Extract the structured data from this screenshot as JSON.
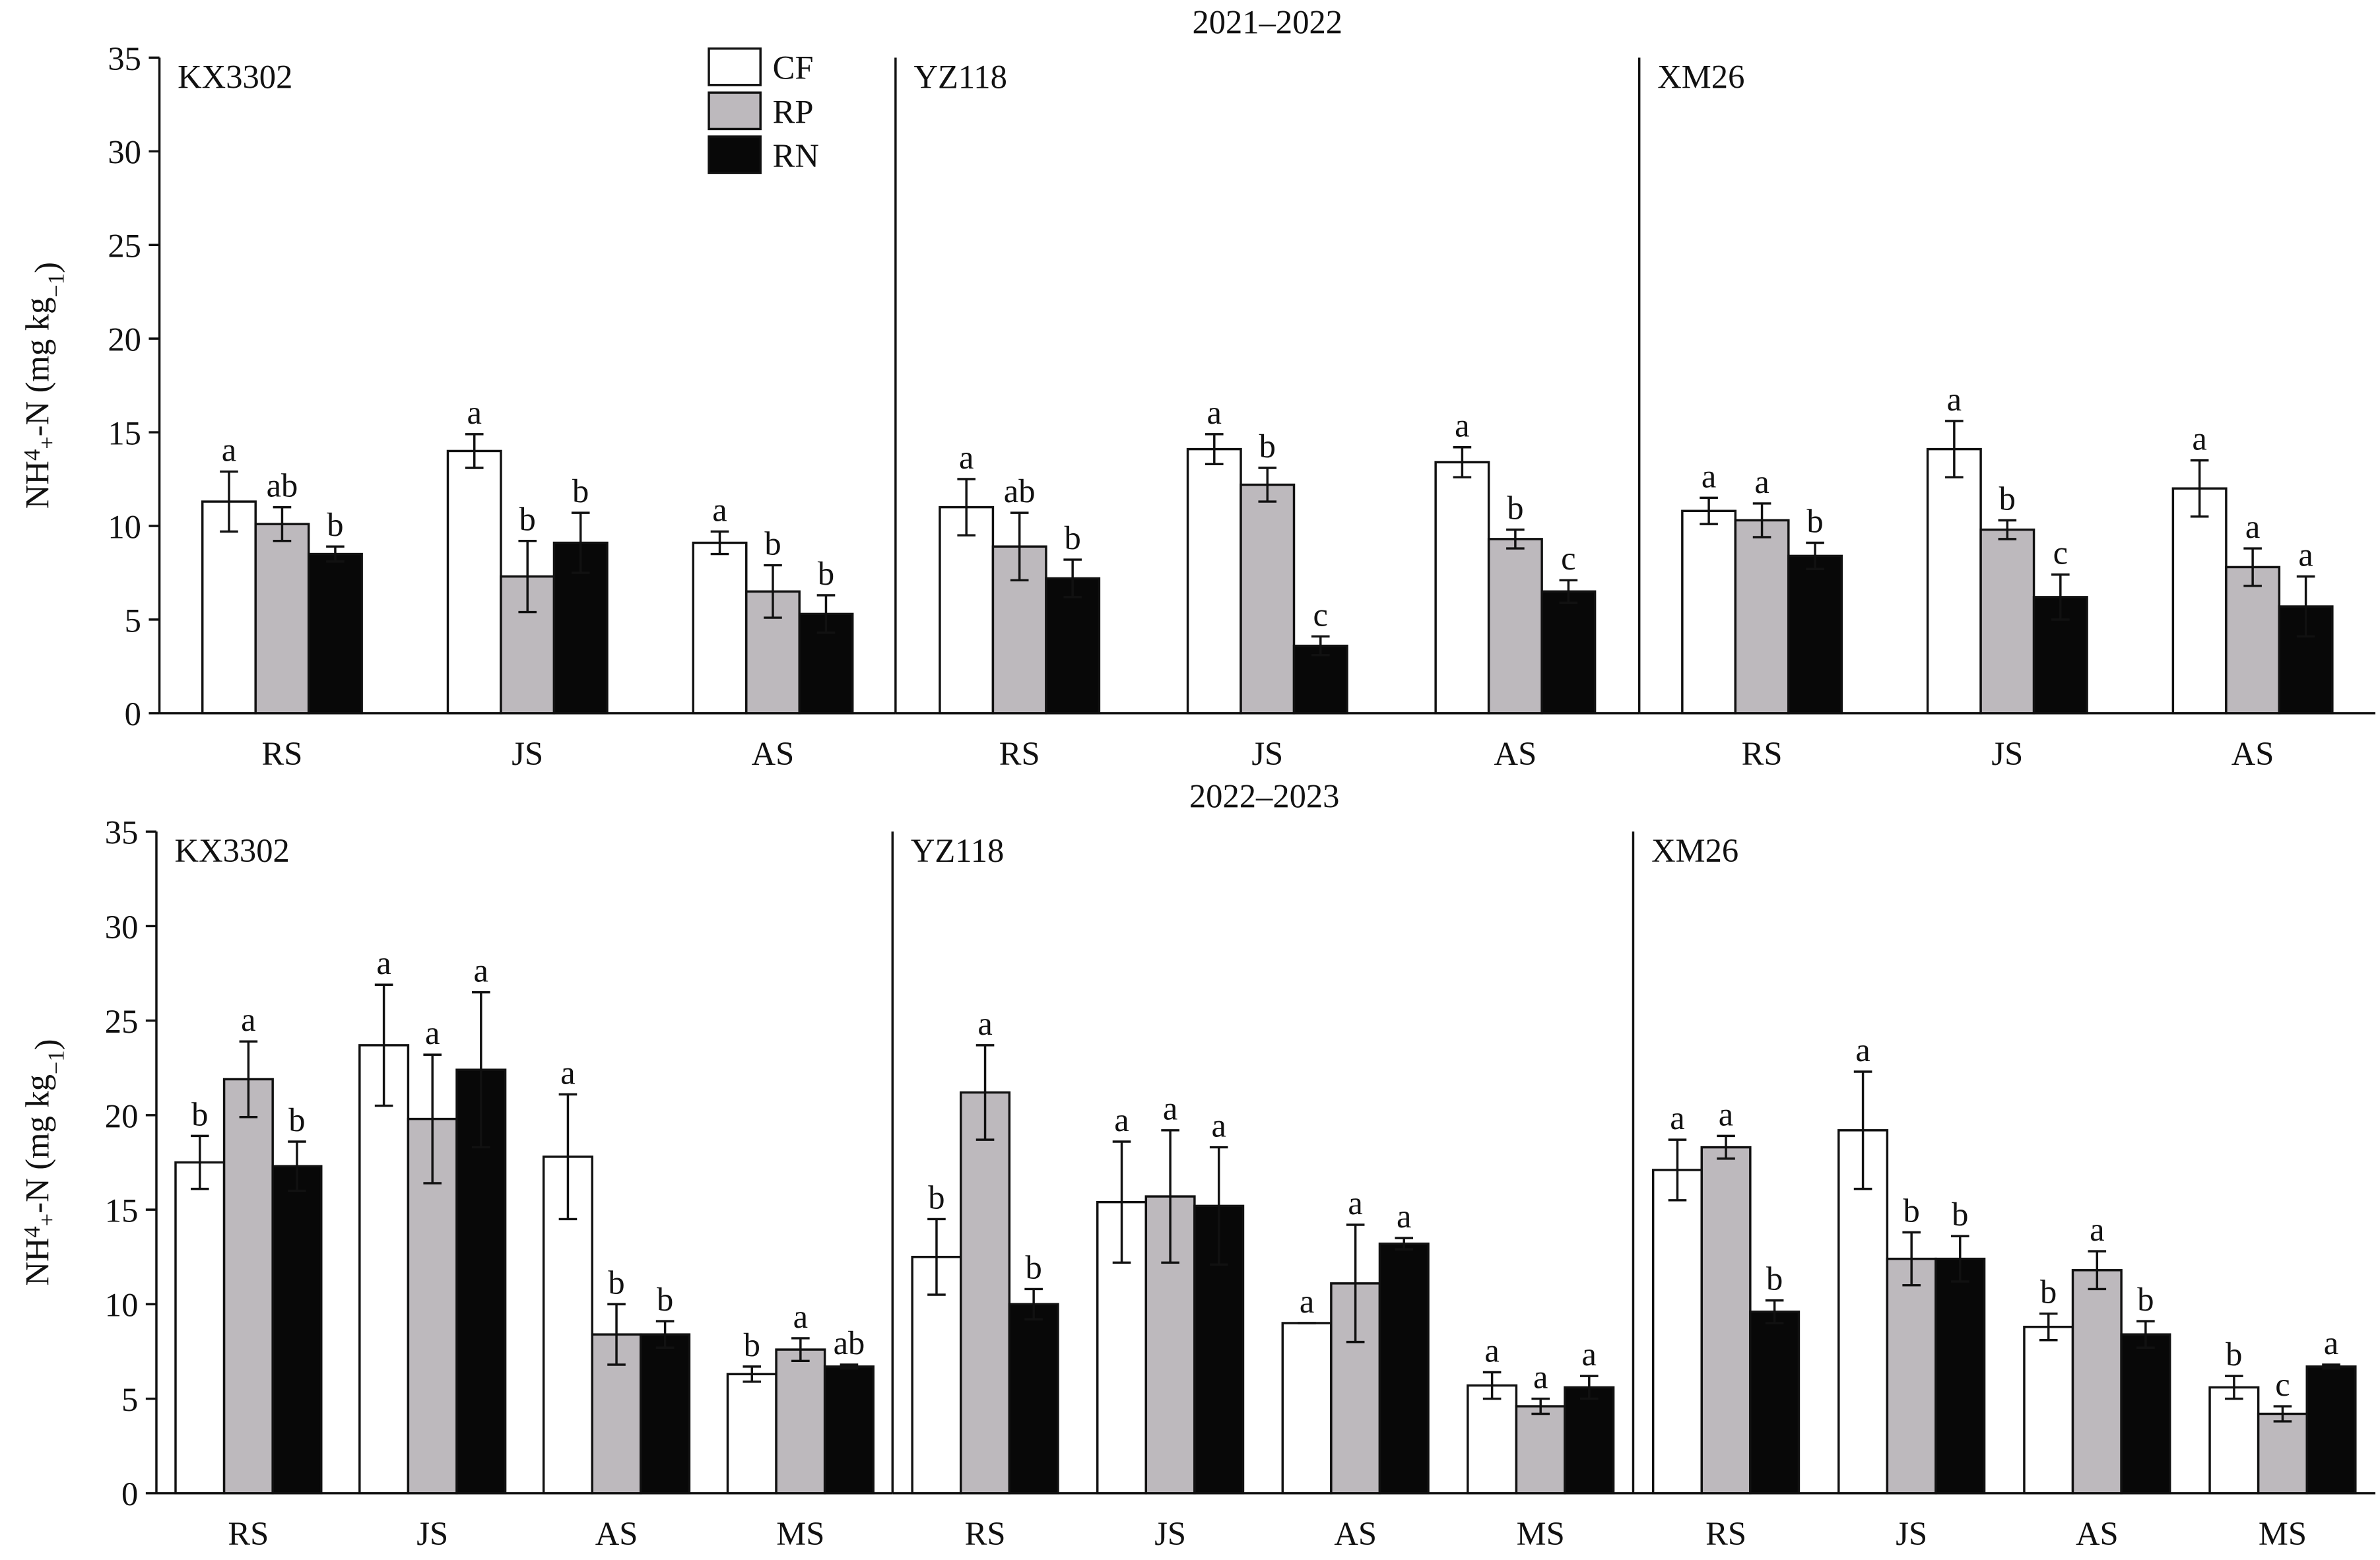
{
  "chart_data": [
    {
      "type": "bar",
      "panel_label": "KX3302",
      "ylabel": [
        "NH",
        "4",
        "+",
        "-N (mg kg",
        "−1",
        ")"
      ],
      "categories": [
        "RS",
        "JS",
        "AS"
      ],
      "ylim": [
        0,
        35
      ],
      "yticks": [
        0,
        5,
        10,
        15,
        20,
        25,
        30,
        35
      ],
      "legend": "top",
      "series": [
        {
          "name": "CF",
          "color": "#ffffff",
          "values": [
            11.3,
            14.0,
            9.1
          ],
          "errors": [
            1.6,
            0.9,
            0.6
          ],
          "labels": [
            "a",
            "a",
            "a"
          ]
        },
        {
          "name": "RP",
          "color": "#bdb9bd",
          "values": [
            10.1,
            7.3,
            6.5
          ],
          "errors": [
            0.9,
            1.9,
            1.4
          ],
          "labels": [
            "ab",
            "b",
            "b"
          ]
        },
        {
          "name": "RN",
          "color": "#080808",
          "values": [
            8.5,
            9.1,
            5.3
          ],
          "errors": [
            0.4,
            1.6,
            1.0
          ],
          "labels": [
            "b",
            "b",
            "b"
          ]
        }
      ]
    },
    {
      "type": "bar",
      "panel_label": "YZ118",
      "title": "2021–2022",
      "categories": [
        "RS",
        "JS",
        "AS"
      ],
      "ylim": [
        0,
        35
      ],
      "series": [
        {
          "color": "#ffffff",
          "values": [
            11.0,
            14.1,
            13.4
          ],
          "errors": [
            1.5,
            0.8,
            0.8
          ],
          "labels": [
            "a",
            "a",
            "a"
          ]
        },
        {
          "color": "#bdb9bd",
          "values": [
            8.9,
            12.2,
            9.3
          ],
          "errors": [
            1.8,
            0.9,
            0.5
          ],
          "labels": [
            "ab",
            "b",
            "b"
          ]
        },
        {
          "color": "#080808",
          "values": [
            7.2,
            3.6,
            6.5
          ],
          "errors": [
            1.0,
            0.5,
            0.6
          ],
          "labels": [
            "b",
            "c",
            "c"
          ]
        }
      ]
    },
    {
      "type": "bar",
      "panel_label": "XM26",
      "categories": [
        "RS",
        "JS",
        "AS"
      ],
      "ylim": [
        0,
        35
      ],
      "series": [
        {
          "color": "#ffffff",
          "values": [
            10.8,
            14.1,
            12.0
          ],
          "errors": [
            0.7,
            1.5,
            1.5
          ],
          "labels": [
            "a",
            "a",
            "a"
          ]
        },
        {
          "color": "#bdb9bd",
          "values": [
            10.3,
            9.8,
            7.8
          ],
          "errors": [
            0.9,
            0.5,
            1.0
          ],
          "labels": [
            "a",
            "b",
            "a"
          ]
        },
        {
          "color": "#080808",
          "values": [
            8.4,
            6.2,
            5.7
          ],
          "errors": [
            0.7,
            1.2,
            1.6
          ],
          "labels": [
            "b",
            "c",
            "a"
          ]
        }
      ]
    },
    {
      "type": "bar",
      "panel_label": "KX3302",
      "ylabel": [
        "NH",
        "4",
        "+",
        "-N  (mg kg",
        "−1",
        ")"
      ],
      "categories": [
        "RS",
        "JS",
        "AS",
        "MS"
      ],
      "ylim": [
        0,
        35
      ],
      "yticks": [
        0,
        5,
        10,
        15,
        20,
        25,
        30,
        35
      ],
      "series": [
        {
          "color": "#ffffff",
          "values": [
            17.5,
            23.7,
            17.8,
            6.3
          ],
          "errors": [
            1.4,
            3.2,
            3.3,
            0.4
          ],
          "labels": [
            "b",
            "a",
            "a",
            "b"
          ]
        },
        {
          "color": "#bdb9bd",
          "values": [
            21.9,
            19.8,
            8.4,
            7.6
          ],
          "errors": [
            2.0,
            3.4,
            1.6,
            0.6
          ],
          "labels": [
            "a",
            "a",
            "b",
            "a"
          ]
        },
        {
          "color": "#080808",
          "values": [
            17.3,
            22.4,
            8.4,
            6.7
          ],
          "errors": [
            1.3,
            4.1,
            0.7,
            0.1
          ],
          "labels": [
            "b",
            "a",
            "b",
            "ab"
          ]
        }
      ]
    },
    {
      "type": "bar",
      "panel_label": "YZ118",
      "title": "2022–2023",
      "categories": [
        "RS",
        "JS",
        "AS",
        "MS"
      ],
      "ylim": [
        0,
        35
      ],
      "series": [
        {
          "color": "#ffffff",
          "values": [
            12.5,
            15.4,
            9.0,
            5.7
          ],
          "errors": [
            2.0,
            3.2,
            0,
            0.7
          ],
          "labels": [
            "b",
            "a",
            "a",
            "a"
          ]
        },
        {
          "color": "#bdb9bd",
          "values": [
            21.2,
            15.7,
            11.1,
            4.6
          ],
          "errors": [
            2.5,
            3.5,
            3.1,
            0.4
          ],
          "labels": [
            "a",
            "a",
            "a",
            "a"
          ]
        },
        {
          "color": "#080808",
          "values": [
            10.0,
            15.2,
            13.2,
            5.6
          ],
          "errors": [
            0.8,
            3.1,
            0.3,
            0.6
          ],
          "labels": [
            "b",
            "a",
            "a",
            "a"
          ]
        }
      ]
    },
    {
      "type": "bar",
      "panel_label": "XM26",
      "categories": [
        "RS",
        "JS",
        "AS",
        "MS"
      ],
      "ylim": [
        0,
        35
      ],
      "series": [
        {
          "color": "#ffffff",
          "values": [
            17.1,
            19.2,
            8.8,
            5.6
          ],
          "errors": [
            1.6,
            3.1,
            0.7,
            0.6
          ],
          "labels": [
            "a",
            "a",
            "b",
            "b"
          ]
        },
        {
          "color": "#bdb9bd",
          "values": [
            18.3,
            12.4,
            11.8,
            4.2
          ],
          "errors": [
            0.6,
            1.4,
            1.0,
            0.4
          ],
          "labels": [
            "a",
            "b",
            "a",
            "c"
          ]
        },
        {
          "color": "#080808",
          "values": [
            9.6,
            12.4,
            8.4,
            6.7
          ],
          "errors": [
            0.6,
            1.2,
            0.7,
            0.1
          ],
          "labels": [
            "b",
            "b",
            "b",
            "a"
          ]
        }
      ]
    }
  ]
}
